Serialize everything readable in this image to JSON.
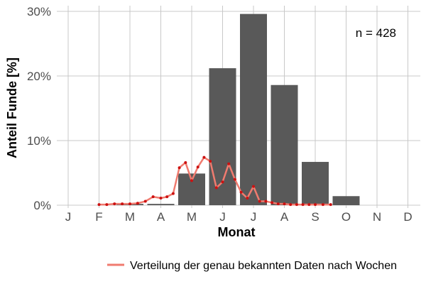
{
  "chart_data": {
    "type": "bar",
    "xlabel": "Monat",
    "ylabel": "Anteil Funde [%]",
    "categories": [
      "J",
      "F",
      "M",
      "A",
      "M",
      "J",
      "J",
      "A",
      "S",
      "O",
      "N",
      "D"
    ],
    "values": [
      0,
      0,
      0.2,
      0.2,
      4.9,
      21.2,
      29.6,
      18.6,
      6.7,
      1.4,
      0,
      0
    ],
    "ylim": [
      0,
      30
    ],
    "yticks": [
      0,
      10,
      20,
      30
    ],
    "ytick_labels": [
      "0%",
      "10%",
      "20%",
      "30%"
    ],
    "grid": true,
    "annotation": "n = 428",
    "line_series": {
      "name": "Verteilung der genau bekannten Daten nach Wochen",
      "color": "#f07b6f",
      "point_color": "#cc1111",
      "x": [
        2.0,
        2.25,
        2.5,
        2.75,
        3.0,
        3.25,
        3.5,
        3.75,
        4.0,
        4.2,
        4.4,
        4.6,
        4.8,
        5.0,
        5.2,
        5.4,
        5.6,
        5.8,
        6.0,
        6.2,
        6.4,
        6.6,
        6.8,
        7.0,
        7.2,
        7.4,
        7.6,
        7.8,
        8.0,
        8.2,
        8.4,
        8.6,
        8.8,
        9.0,
        9.25,
        9.5
      ],
      "y": [
        0.1,
        0.1,
        0.2,
        0.2,
        0.2,
        0.3,
        0.6,
        1.3,
        1.1,
        1.3,
        1.8,
        5.8,
        6.6,
        3.8,
        5.9,
        7.4,
        6.8,
        2.7,
        3.6,
        6.4,
        4.0,
        2.0,
        1.1,
        2.9,
        0.6,
        0.6,
        0.4,
        0.2,
        0.2,
        0.1,
        0.1,
        0.1,
        0.1,
        0.1,
        0.1,
        0.1
      ]
    },
    "legend_position": "bottom-right"
  },
  "colors": {
    "bar": "#595959",
    "grid": "#c8c8c8",
    "background": "#ffffff"
  }
}
